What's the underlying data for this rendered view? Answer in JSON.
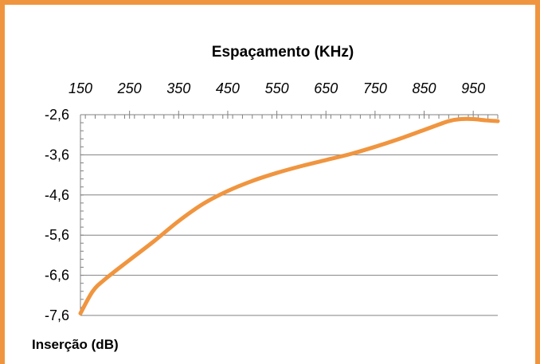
{
  "chart_data": {
    "type": "line",
    "title": "Espaçamento (KHz)",
    "xlabel": "Espaçamento (KHz)",
    "ylabel": "Inserção (dB)",
    "xlim": [
      150,
      1000
    ],
    "ylim": [
      -7.6,
      -2.6
    ],
    "x_axis_position": "top",
    "x_ticks": [
      150,
      250,
      350,
      450,
      550,
      650,
      750,
      850,
      950
    ],
    "x_tick_labels": [
      "150",
      "250",
      "350",
      "450",
      "550",
      "650",
      "750",
      "850",
      "950"
    ],
    "y_ticks": [
      -2.6,
      -3.6,
      -4.6,
      -5.6,
      -6.6,
      -7.6
    ],
    "y_tick_labels": [
      "-2,6",
      "-3,6",
      "-4,6",
      "-5,6",
      "-6,6",
      "-7,6"
    ],
    "grid": {
      "horizontal": true,
      "vertical": false
    },
    "legend": "none",
    "colors": {
      "line": "#f0953f",
      "frame": "#f0953f",
      "grid": "#808080"
    },
    "series": [
      {
        "x": [
          150,
          175,
          200,
          250,
          300,
          350,
          400,
          450,
          500,
          550,
          600,
          650,
          700,
          750,
          800,
          850,
          900,
          925,
          950,
          975,
          1000
        ],
        "values": [
          -7.55,
          -7.0,
          -6.7,
          -6.22,
          -5.75,
          -5.25,
          -4.82,
          -4.5,
          -4.25,
          -4.05,
          -3.88,
          -3.73,
          -3.58,
          -3.4,
          -3.2,
          -2.98,
          -2.76,
          -2.71,
          -2.71,
          -2.74,
          -2.76
        ]
      }
    ]
  }
}
